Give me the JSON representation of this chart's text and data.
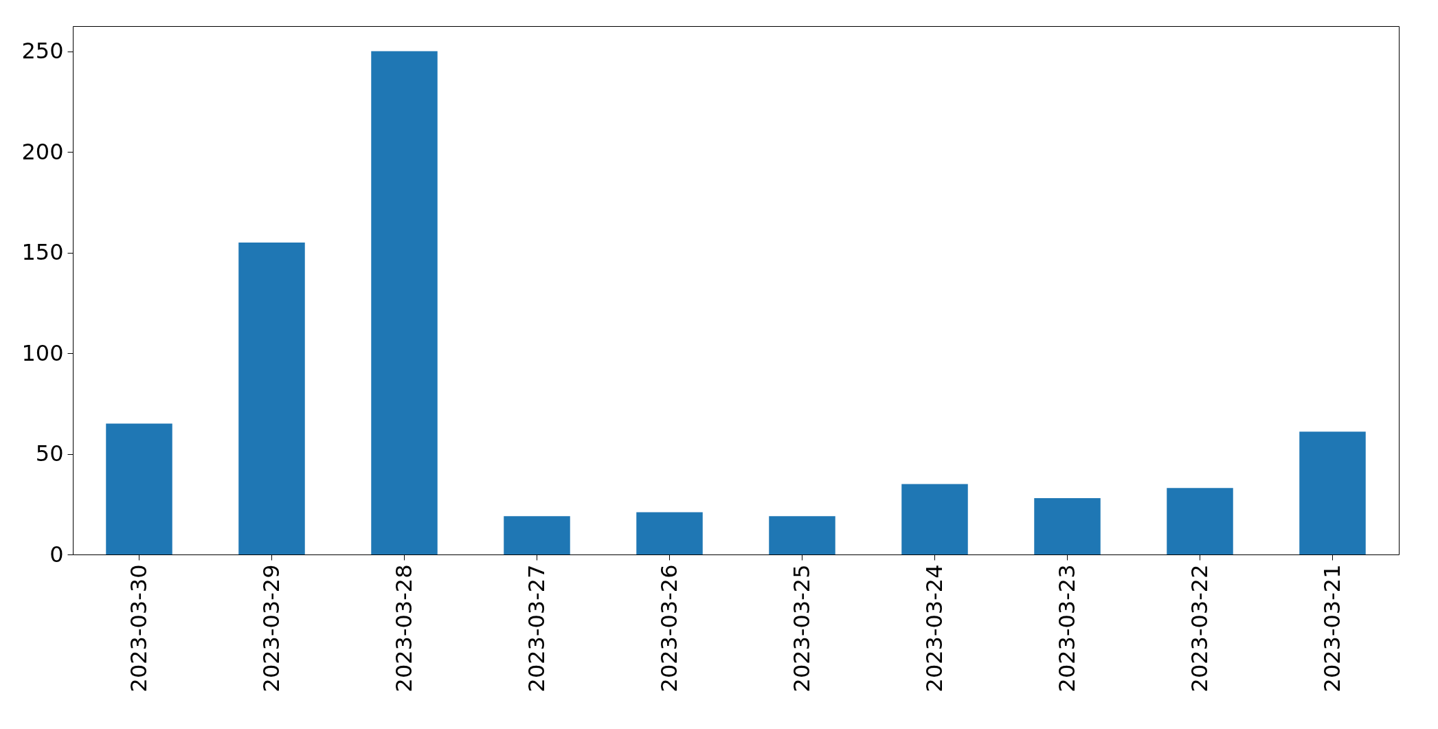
{
  "chart_data": {
    "type": "bar",
    "categories": [
      "2023-03-30",
      "2023-03-29",
      "2023-03-28",
      "2023-03-27",
      "2023-03-26",
      "2023-03-25",
      "2023-03-24",
      "2023-03-23",
      "2023-03-22",
      "2023-03-21"
    ],
    "values": [
      65,
      155,
      250,
      19,
      21,
      19,
      35,
      28,
      33,
      61
    ],
    "color": "#1f77b4",
    "ylim": [
      0,
      262.5
    ],
    "yticks": [
      0,
      50,
      100,
      150,
      200,
      250
    ],
    "grid": false
  }
}
